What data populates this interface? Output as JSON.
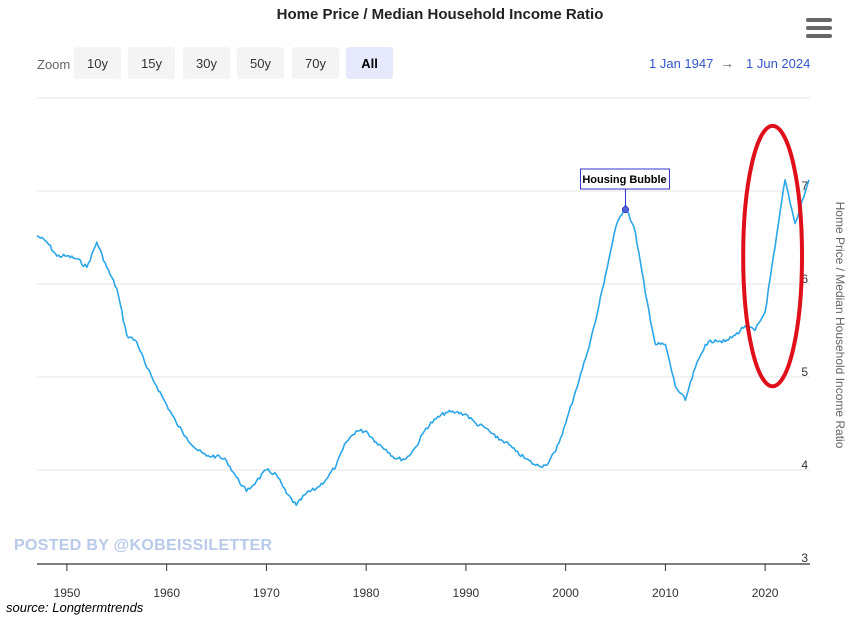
{
  "header": {
    "title": "Home Price / Median Household Income Ratio",
    "menu_icon": "hamburger-menu-icon"
  },
  "zoom": {
    "label": "Zoom",
    "buttons": [
      "10y",
      "15y",
      "30y",
      "50y",
      "70y",
      "All"
    ],
    "selected": "All"
  },
  "range": {
    "from": "1 Jan 1947",
    "arrow": "→",
    "to": "1 Jun 2024"
  },
  "watermark": "POSTED BY @KOBEISSILETTER",
  "source": "source: Longtermtrends",
  "colors": {
    "line": "#2ba6e8",
    "annotation_ellipse": "#e0101a",
    "annotation_border": "#3333cc"
  },
  "chart_data": {
    "type": "line",
    "title": "Home Price / Median Household Income Ratio",
    "ylabel": "Home Price / Median Household Income Ratio",
    "xlabel": "",
    "xlim": [
      1947,
      2024.5
    ],
    "ylim": [
      3,
      8
    ],
    "x_ticks": [
      "1950",
      "1960",
      "1970",
      "1980",
      "1990",
      "2000",
      "2010",
      "2020"
    ],
    "y_ticks": [
      "3",
      "4",
      "5",
      "6",
      "7"
    ],
    "grid": "horizontal",
    "annotation": {
      "label": "Housing Bubble",
      "x": 2006,
      "y": 6.8
    },
    "highlight": {
      "shape": "ellipse",
      "x_range": [
        2017.8,
        2023.7
      ],
      "y_range": [
        4.9,
        7.7
      ]
    },
    "series": [
      {
        "x": [
          1947,
          1948,
          1949,
          1950,
          1951,
          1952,
          1953,
          1954,
          1955,
          1956,
          1957,
          1958,
          1959,
          1960,
          1961,
          1962,
          1963,
          1964,
          1965,
          1966,
          1967,
          1968,
          1969,
          1970,
          1971,
          1972,
          1973,
          1974,
          1975,
          1976,
          1977,
          1978,
          1979,
          1980,
          1981,
          1982,
          1983,
          1984,
          1985,
          1986,
          1987,
          1988,
          1989,
          1990,
          1991,
          1992,
          1993,
          1994,
          1995,
          1996,
          1997,
          1998,
          1999,
          2000,
          2001,
          2002,
          2003,
          2004,
          2005,
          2006,
          2007,
          2008,
          2009,
          2010,
          2011,
          2012,
          2013,
          2014,
          2015,
          2016,
          2017,
          2018,
          2019,
          2020,
          2021,
          2022,
          2023,
          2024.4
        ],
        "values": [
          6.52,
          6.45,
          6.3,
          6.3,
          6.27,
          6.18,
          6.45,
          6.18,
          5.95,
          5.45,
          5.38,
          5.1,
          4.9,
          4.7,
          4.5,
          4.35,
          4.22,
          4.15,
          4.15,
          4.1,
          3.92,
          3.77,
          3.88,
          4.0,
          3.95,
          3.75,
          3.62,
          3.75,
          3.8,
          3.9,
          4.05,
          4.3,
          4.42,
          4.42,
          4.3,
          4.22,
          4.12,
          4.12,
          4.25,
          4.45,
          4.55,
          4.62,
          4.62,
          4.6,
          4.5,
          4.45,
          4.35,
          4.3,
          4.2,
          4.12,
          4.05,
          4.05,
          4.2,
          4.5,
          4.85,
          5.2,
          5.6,
          6.1,
          6.6,
          6.85,
          6.55,
          5.9,
          5.35,
          5.35,
          4.9,
          4.75,
          5.1,
          5.35,
          5.4,
          5.38,
          5.45,
          5.55,
          5.5,
          5.7,
          6.4,
          7.12,
          6.65,
          7.12
        ]
      }
    ]
  }
}
